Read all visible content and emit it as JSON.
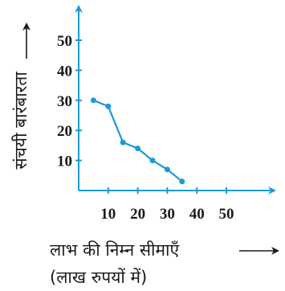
{
  "chart_data": {
    "type": "line",
    "title": "",
    "xlabel": "लाभ की निम्न सीमाएँ",
    "xlabel_sub": "(लाख रुपयों में)",
    "ylabel": "संचयी बारंबारता",
    "xlim": [
      0,
      60
    ],
    "ylim": [
      0,
      60
    ],
    "xticks": [
      10,
      20,
      30,
      40,
      50
    ],
    "yticks": [
      10,
      20,
      30,
      40,
      50
    ],
    "grid": false,
    "series": [
      {
        "x": [
          5,
          10,
          15,
          20,
          25,
          30,
          35
        ],
        "y": [
          30,
          28,
          16,
          14,
          10,
          7,
          3
        ],
        "color": "#1c9ad6"
      }
    ]
  },
  "colors": {
    "axis": "#1c9ad6",
    "line": "#1c9ad6",
    "point": "#1c9ad6",
    "text": "#1a1a1a"
  }
}
